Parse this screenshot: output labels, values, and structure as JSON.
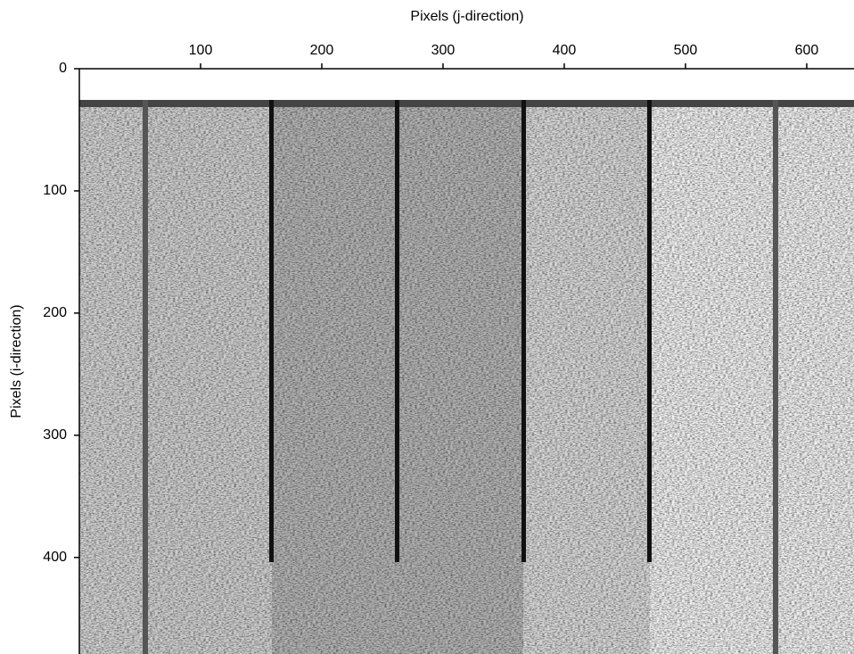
{
  "chart_data": {
    "type": "image",
    "xlabel": "Pixels (j-direction)",
    "ylabel": "Pixels (i-direction)",
    "xlim": [
      0,
      639
    ],
    "ylim": [
      0,
      479
    ],
    "xticks": [
      100,
      200,
      300,
      400,
      500,
      600
    ],
    "yticks": [
      0,
      100,
      200,
      300,
      400
    ]
  }
}
